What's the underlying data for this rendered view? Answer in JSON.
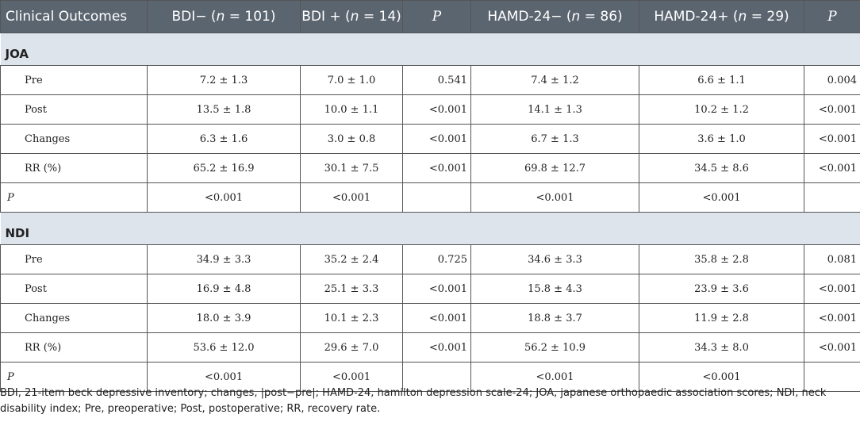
{
  "header": {
    "col0": "Clinical Outcomes",
    "col1_a": "BDI− (",
    "col1_n": "n",
    "col1_b": " = 101)",
    "col2_a": "BDI + (",
    "col2_n": "n",
    "col2_b": " = 14)",
    "col3": "P",
    "col4_a": "HAMD-24− (",
    "col4_n": "n",
    "col4_b": " = 86)",
    "col5_a": "HAMD-24+ (",
    "col5_n": "n",
    "col5_b": " = 29)",
    "col6": "P"
  },
  "joa": {
    "title": "JOA",
    "rows": [
      {
        "label": "Pre",
        "bdi_neg": "7.2 ± 1.3",
        "bdi_pos": "7.0 ± 1.0",
        "p1": "0.541",
        "hamd_neg": "7.4 ± 1.2",
        "hamd_pos": "6.6 ± 1.1",
        "p2": "0.004"
      },
      {
        "label": "Post",
        "bdi_neg": "13.5 ± 1.8",
        "bdi_pos": "10.0 ± 1.1",
        "p1": "<0.001",
        "hamd_neg": "14.1 ± 1.3",
        "hamd_pos": "10.2 ± 1.2",
        "p2": "<0.001"
      },
      {
        "label": "Changes",
        "bdi_neg": "6.3 ± 1.6",
        "bdi_pos": "3.0 ± 0.8",
        "p1": "<0.001",
        "hamd_neg": "6.7 ± 1.3",
        "hamd_pos": "3.6 ± 1.0",
        "p2": "<0.001"
      },
      {
        "label": "RR (%)",
        "bdi_neg": "65.2 ± 16.9",
        "bdi_pos": "30.1 ± 7.5",
        "p1": "<0.001",
        "hamd_neg": "69.8 ± 12.7",
        "hamd_pos": "34.5 ± 8.6",
        "p2": "<0.001"
      },
      {
        "label": "P",
        "bdi_neg": "<0.001",
        "bdi_pos": "<0.001",
        "p1": "",
        "hamd_neg": "<0.001",
        "hamd_pos": "<0.001",
        "p2": ""
      }
    ]
  },
  "ndi": {
    "title": "NDI",
    "rows": [
      {
        "label": "Pre",
        "bdi_neg": "34.9 ± 3.3",
        "bdi_pos": "35.2 ± 2.4",
        "p1": "0.725",
        "hamd_neg": "34.6 ± 3.3",
        "hamd_pos": "35.8 ± 2.8",
        "p2": "0.081"
      },
      {
        "label": "Post",
        "bdi_neg": "16.9 ± 4.8",
        "bdi_pos": "25.1 ± 3.3",
        "p1": "<0.001",
        "hamd_neg": "15.8 ± 4.3",
        "hamd_pos": "23.9 ± 3.6",
        "p2": "<0.001"
      },
      {
        "label": "Changes",
        "bdi_neg": "18.0 ± 3.9",
        "bdi_pos": "10.1 ± 2.3",
        "p1": "<0.001",
        "hamd_neg": "18.8 ± 3.7",
        "hamd_pos": "11.9 ± 2.8",
        "p2": "<0.001"
      },
      {
        "label": "RR (%)",
        "bdi_neg": "53.6 ± 12.0",
        "bdi_pos": "29.6 ± 7.0",
        "p1": "<0.001",
        "hamd_neg": "56.2 ± 10.9",
        "hamd_pos": "34.3 ± 8.0",
        "p2": "<0.001"
      },
      {
        "label": "P",
        "bdi_neg": "<0.001",
        "bdi_pos": "<0.001",
        "p1": "",
        "hamd_neg": "<0.001",
        "hamd_pos": "<0.001",
        "p2": ""
      }
    ]
  },
  "footnote": {
    "line1": "BDI, 21-item beck depressive inventory; changes, |post−pre|; HAMD-24, hamilton depression scale-24; JOA, japanese orthopaedic association scores; NDI, neck",
    "line2": "disability index; Pre, preoperative; Post, postoperative; RR, recovery rate."
  },
  "colors": {
    "header_bg": "#5b6570",
    "section_bg": "#dde4ec",
    "border": "#555555"
  }
}
